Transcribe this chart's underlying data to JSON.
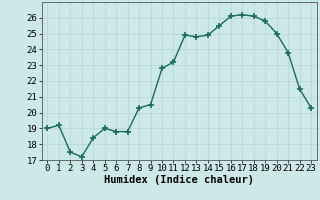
{
  "x": [
    0,
    1,
    2,
    3,
    4,
    5,
    6,
    7,
    8,
    9,
    10,
    11,
    12,
    13,
    14,
    15,
    16,
    17,
    18,
    19,
    20,
    21,
    22,
    23
  ],
  "y": [
    19.0,
    19.2,
    17.5,
    17.2,
    18.4,
    19.0,
    18.8,
    18.8,
    20.3,
    20.5,
    22.8,
    23.2,
    24.9,
    24.8,
    24.9,
    25.5,
    26.1,
    26.2,
    26.1,
    25.8,
    25.0,
    23.8,
    21.5,
    20.3
  ],
  "line_color": "#1a6b5a",
  "marker": "+",
  "markersize": 4,
  "markeredgewidth": 1.2,
  "linewidth": 1.0,
  "bg_color": "#cce8e8",
  "grid_color": "#b8d8d8",
  "xlabel": "Humidex (Indice chaleur)",
  "xlabel_fontsize": 7.5,
  "tick_fontsize": 6.5,
  "ylim": [
    17,
    27
  ],
  "yticks": [
    17,
    18,
    19,
    20,
    21,
    22,
    23,
    24,
    25,
    26
  ],
  "xlim": [
    -0.5,
    23.5
  ],
  "xticks": [
    0,
    1,
    2,
    3,
    4,
    5,
    6,
    7,
    8,
    9,
    10,
    11,
    12,
    13,
    14,
    15,
    16,
    17,
    18,
    19,
    20,
    21,
    22,
    23
  ]
}
